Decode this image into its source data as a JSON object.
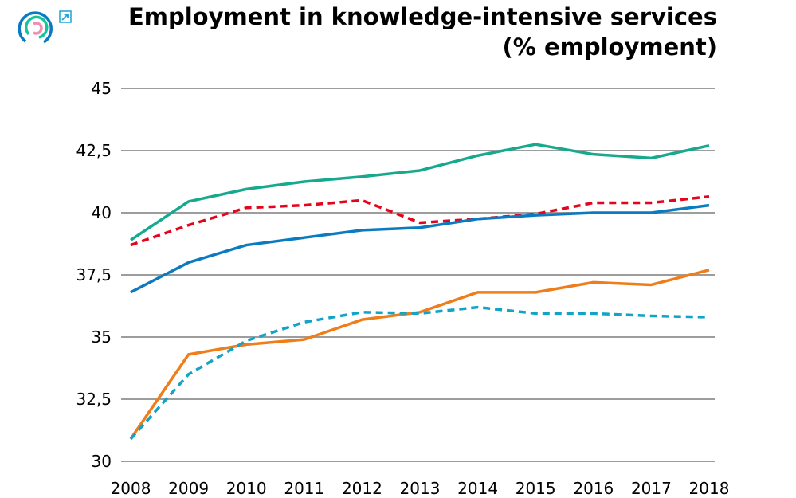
{
  "chart_data": {
    "type": "line",
    "title": "Employment in knowledge-intensive services",
    "subtitle": "(% employment)",
    "xlabel": "",
    "ylabel": "",
    "x": [
      2008,
      2009,
      2010,
      2011,
      2012,
      2013,
      2014,
      2015,
      2016,
      2017,
      2018
    ],
    "x_tick_labels": [
      "2008",
      "2009",
      "2010",
      "2011",
      "2012",
      "2013",
      "2014",
      "2015",
      "2016",
      "2017",
      "2018"
    ],
    "y_ticks": [
      30,
      32.5,
      35,
      37.5,
      40,
      42.5,
      45
    ],
    "y_tick_labels": [
      "30",
      "32,5",
      "35",
      "37,5",
      "40",
      "42,5",
      "45"
    ],
    "ylim": [
      30,
      45
    ],
    "grid": "horizontal",
    "legend": "none",
    "series": [
      {
        "color": "#17a98d",
        "style": "solid",
        "values": [
          38.9,
          40.45,
          40.95,
          41.25,
          41.45,
          41.7,
          42.3,
          42.75,
          42.35,
          42.2,
          42.7
        ]
      },
      {
        "color": "#e3051b",
        "style": "dashed",
        "values": [
          38.7,
          39.5,
          40.2,
          40.3,
          40.5,
          39.6,
          39.75,
          39.95,
          40.4,
          40.4,
          40.65
        ]
      },
      {
        "color": "#0b7bc1",
        "style": "solid",
        "values": [
          36.8,
          38.0,
          38.7,
          39.0,
          39.3,
          39.4,
          39.75,
          39.9,
          40.0,
          40.0,
          40.3
        ]
      },
      {
        "color": "#ee7d1a",
        "style": "solid",
        "values": [
          30.9,
          34.3,
          34.7,
          34.9,
          35.7,
          36.0,
          36.8,
          36.8,
          37.2,
          37.1,
          37.7
        ]
      },
      {
        "color": "#12a4c6",
        "style": "dashed",
        "values": [
          30.9,
          33.5,
          34.85,
          35.6,
          36.0,
          35.95,
          36.2,
          35.95,
          35.95,
          35.85,
          35.8
        ]
      }
    ]
  },
  "icons": {
    "logo": "ring-logo-icon",
    "external": "external-link-icon"
  }
}
